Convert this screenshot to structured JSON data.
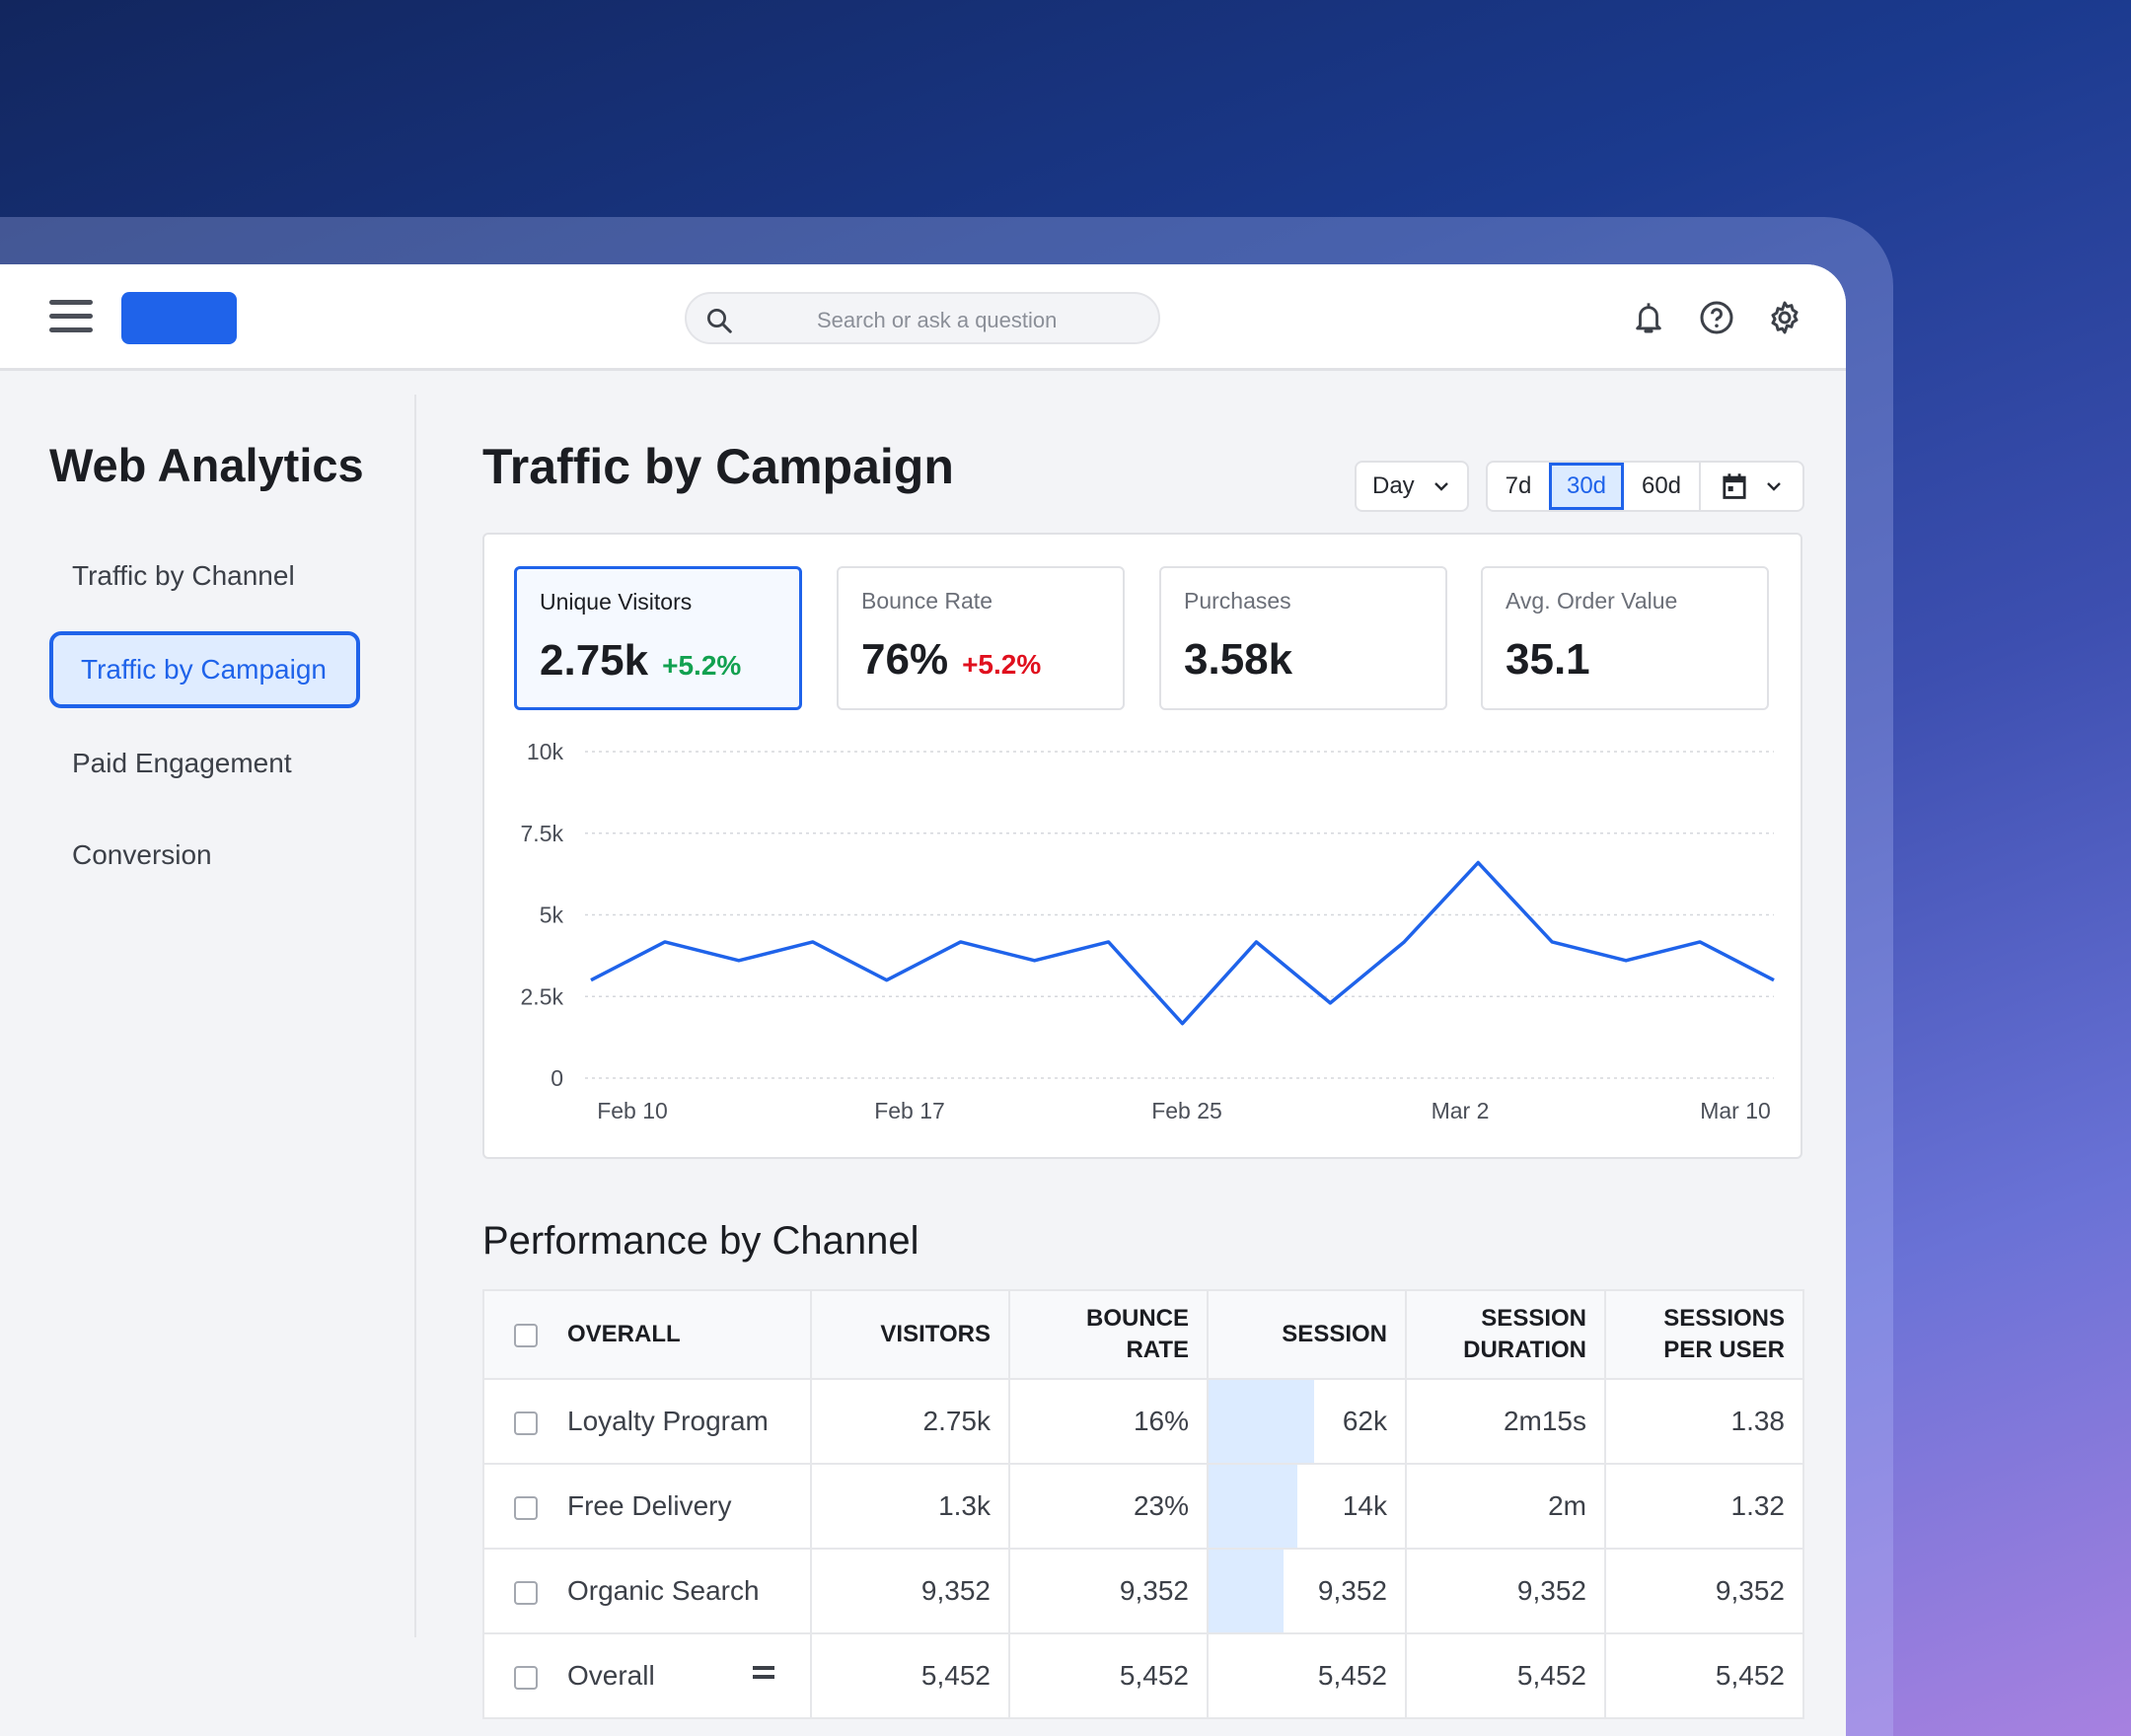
{
  "header": {
    "search_placeholder": "Search or ask a question",
    "icons": [
      "menu-icon",
      "search-icon",
      "bell-icon",
      "help-icon",
      "gear-icon"
    ]
  },
  "sidebar": {
    "title": "Web Analytics",
    "items": [
      {
        "label": "Traffic by Channel"
      },
      {
        "label": "Traffic by Campaign",
        "active": true
      },
      {
        "label": "Paid Engagement"
      },
      {
        "label": "Conversion"
      }
    ]
  },
  "main": {
    "title": "Traffic by Campaign",
    "granularity": "Day",
    "ranges": [
      {
        "label": "7d"
      },
      {
        "label": "30d",
        "active": true
      },
      {
        "label": "60d"
      }
    ],
    "kpis": [
      {
        "label": "Unique Visitors",
        "value": "2.75k",
        "change": "+5.2%",
        "change_color": "#12a150"
      },
      {
        "label": "Bounce Rate",
        "value": "76%",
        "change": "+5.2%",
        "change_color": "#e0101e"
      },
      {
        "label": "Purchases",
        "value": "3.58k",
        "change": ""
      },
      {
        "label": "Avg. Order Value",
        "value": "35.1",
        "change": ""
      }
    ]
  },
  "chart_data": {
    "type": "line",
    "y_ticks": [
      "0",
      "2.5k",
      "5k",
      "7.5k",
      "10k"
    ],
    "ylim": [
      0,
      10000
    ],
    "x_ticks": [
      "Feb 10",
      "Feb 17",
      "Feb 25",
      "Mar 2",
      "Mar 10"
    ],
    "values": [
      3000,
      4170,
      3600,
      4170,
      3000,
      4170,
      3600,
      4170,
      1670,
      4170,
      2300,
      4170,
      6600,
      4170,
      3600,
      4170,
      3000
    ],
    "grid": true,
    "color": "#1f63ea"
  },
  "table": {
    "title": "Performance by Channel",
    "columns": [
      "OVERALL",
      "VISITORS",
      "BOUNCE RATE",
      "SESSION",
      "SESSION DURATION",
      "SESSIONS PER USER"
    ],
    "rows": [
      {
        "cells": [
          "Loyalty Program",
          "2.75k",
          "16%",
          "62k",
          "2m15s",
          "1.38"
        ],
        "session_share": 0.54
      },
      {
        "cells": [
          "Free Delivery",
          "1.3k",
          "23%",
          "14k",
          "2m",
          "1.32"
        ],
        "session_share": 0.45
      },
      {
        "cells": [
          "Organic Search",
          "9,352",
          "9,352",
          "9,352",
          "9,352",
          "9,352"
        ],
        "session_share": 0.38
      },
      {
        "cells": [
          "Overall",
          "5,452",
          "5,452",
          "5,452",
          "5,452",
          "5,452"
        ],
        "session_share": 0
      }
    ]
  }
}
